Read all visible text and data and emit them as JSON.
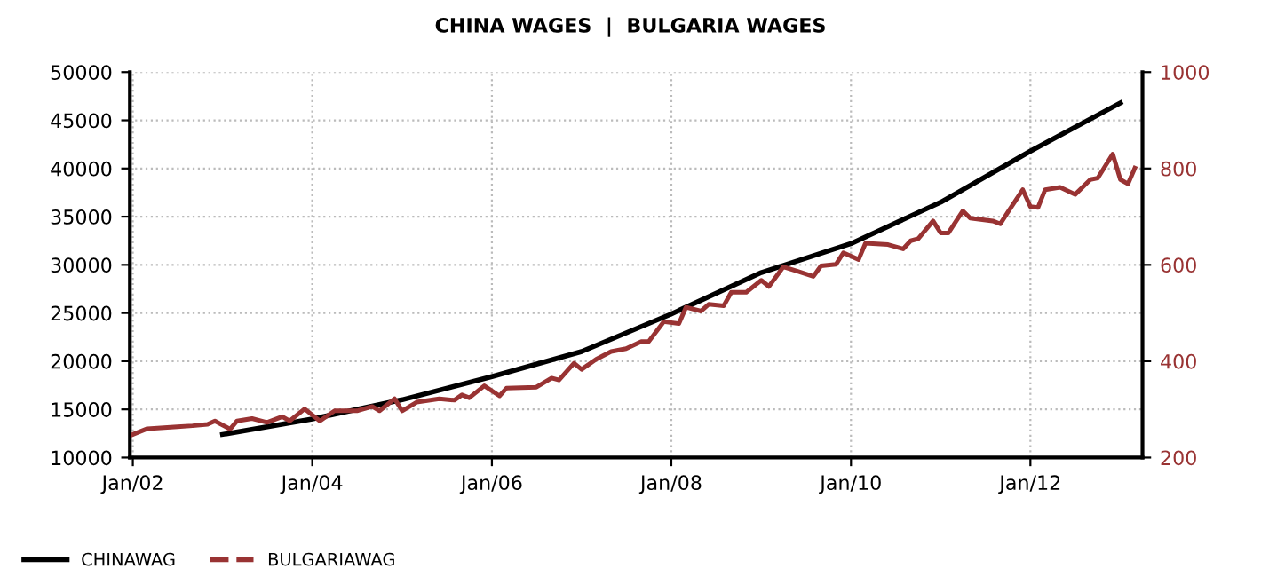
{
  "chart_data": {
    "type": "line",
    "title": "CHINA WAGES  |  BULGARIA WAGES",
    "xlim": [
      "2001-12-20",
      "2013-04-01"
    ],
    "xticks": [
      {
        "value": "2002-01-01",
        "label": "Jan/02"
      },
      {
        "value": "2004-01-01",
        "label": "Jan/04"
      },
      {
        "value": "2006-01-01",
        "label": "Jan/06"
      },
      {
        "value": "2008-01-01",
        "label": "Jan/08"
      },
      {
        "value": "2010-01-01",
        "label": "Jan/10"
      },
      {
        "value": "2012-01-01",
        "label": "Jan/12"
      }
    ],
    "ylim": [
      10000,
      50000
    ],
    "yticks": [
      10000,
      15000,
      20000,
      25000,
      30000,
      35000,
      40000,
      45000,
      50000
    ],
    "y2lim": [
      200,
      1000
    ],
    "y2ticks": [
      200,
      400,
      600,
      800,
      1000
    ],
    "grid": true,
    "legend": "bottom left",
    "series": [
      {
        "name": "CHINAWAG",
        "color": "#000000",
        "x": [
          "2003-01",
          "2004-01",
          "2005-01",
          "2006-01",
          "2007-01",
          "2008-01",
          "2009-01",
          "2010-01",
          "2011-01",
          "2012-01",
          "2013-01"
        ],
        "values": [
          12400,
          14000,
          16000,
          18400,
          21000,
          24900,
          29200,
          32200,
          36500,
          41800,
          46800
        ]
      },
      {
        "name": "BULGARIAWAG",
        "color": "#993333",
        "axis": "y2",
        "x": [
          "2002-01",
          "2002-03",
          "2002-07",
          "2002-09",
          "2002-11",
          "2002-12",
          "2003-02",
          "2003-03",
          "2003-05",
          "2003-07",
          "2003-09",
          "2003-10",
          "2003-12",
          "2004-02",
          "2004-04",
          "2004-07",
          "2004-09",
          "2004-10",
          "2004-12",
          "2005-01",
          "2005-03",
          "2005-06",
          "2005-08",
          "2005-09",
          "2005-10",
          "2005-12",
          "2006-02",
          "2006-03",
          "2006-07",
          "2006-09",
          "2006-10",
          "2006-12",
          "2007-01",
          "2007-03",
          "2007-05",
          "2007-07",
          "2007-09",
          "2007-10",
          "2007-12",
          "2008-02",
          "2008-03",
          "2008-05",
          "2008-06",
          "2008-08",
          "2008-09",
          "2008-11",
          "2009-01",
          "2009-02",
          "2009-04",
          "2009-06",
          "2009-08",
          "2009-09",
          "2009-11",
          "2009-12",
          "2010-02",
          "2010-03",
          "2010-06",
          "2010-08",
          "2010-09",
          "2010-10",
          "2010-12",
          "2011-01",
          "2011-02",
          "2011-04",
          "2011-05",
          "2011-08",
          "2011-09",
          "2011-10",
          "2011-12",
          "2012-01",
          "2012-02",
          "2012-03",
          "2012-05",
          "2012-07",
          "2012-09",
          "2012-10",
          "2012-12",
          "2013-01",
          "2013-02",
          "2013-03"
        ],
        "values": [
          248,
          260,
          264,
          266,
          269,
          276,
          259,
          276,
          281,
          273,
          285,
          276,
          301,
          276,
          297,
          297,
          306,
          297,
          322,
          297,
          315,
          322,
          319,
          330,
          324,
          349,
          328,
          344,
          346,
          365,
          361,
          396,
          383,
          404,
          420,
          426,
          441,
          441,
          482,
          478,
          512,
          504,
          518,
          515,
          543,
          543,
          568,
          555,
          596,
          586,
          576,
          598,
          601,
          625,
          611,
          645,
          642,
          633,
          650,
          654,
          691,
          666,
          666,
          712,
          697,
          691,
          685,
          709,
          756,
          721,
          719,
          756,
          761,
          746,
          777,
          780,
          830,
          777,
          768,
          801
        ]
      }
    ]
  }
}
